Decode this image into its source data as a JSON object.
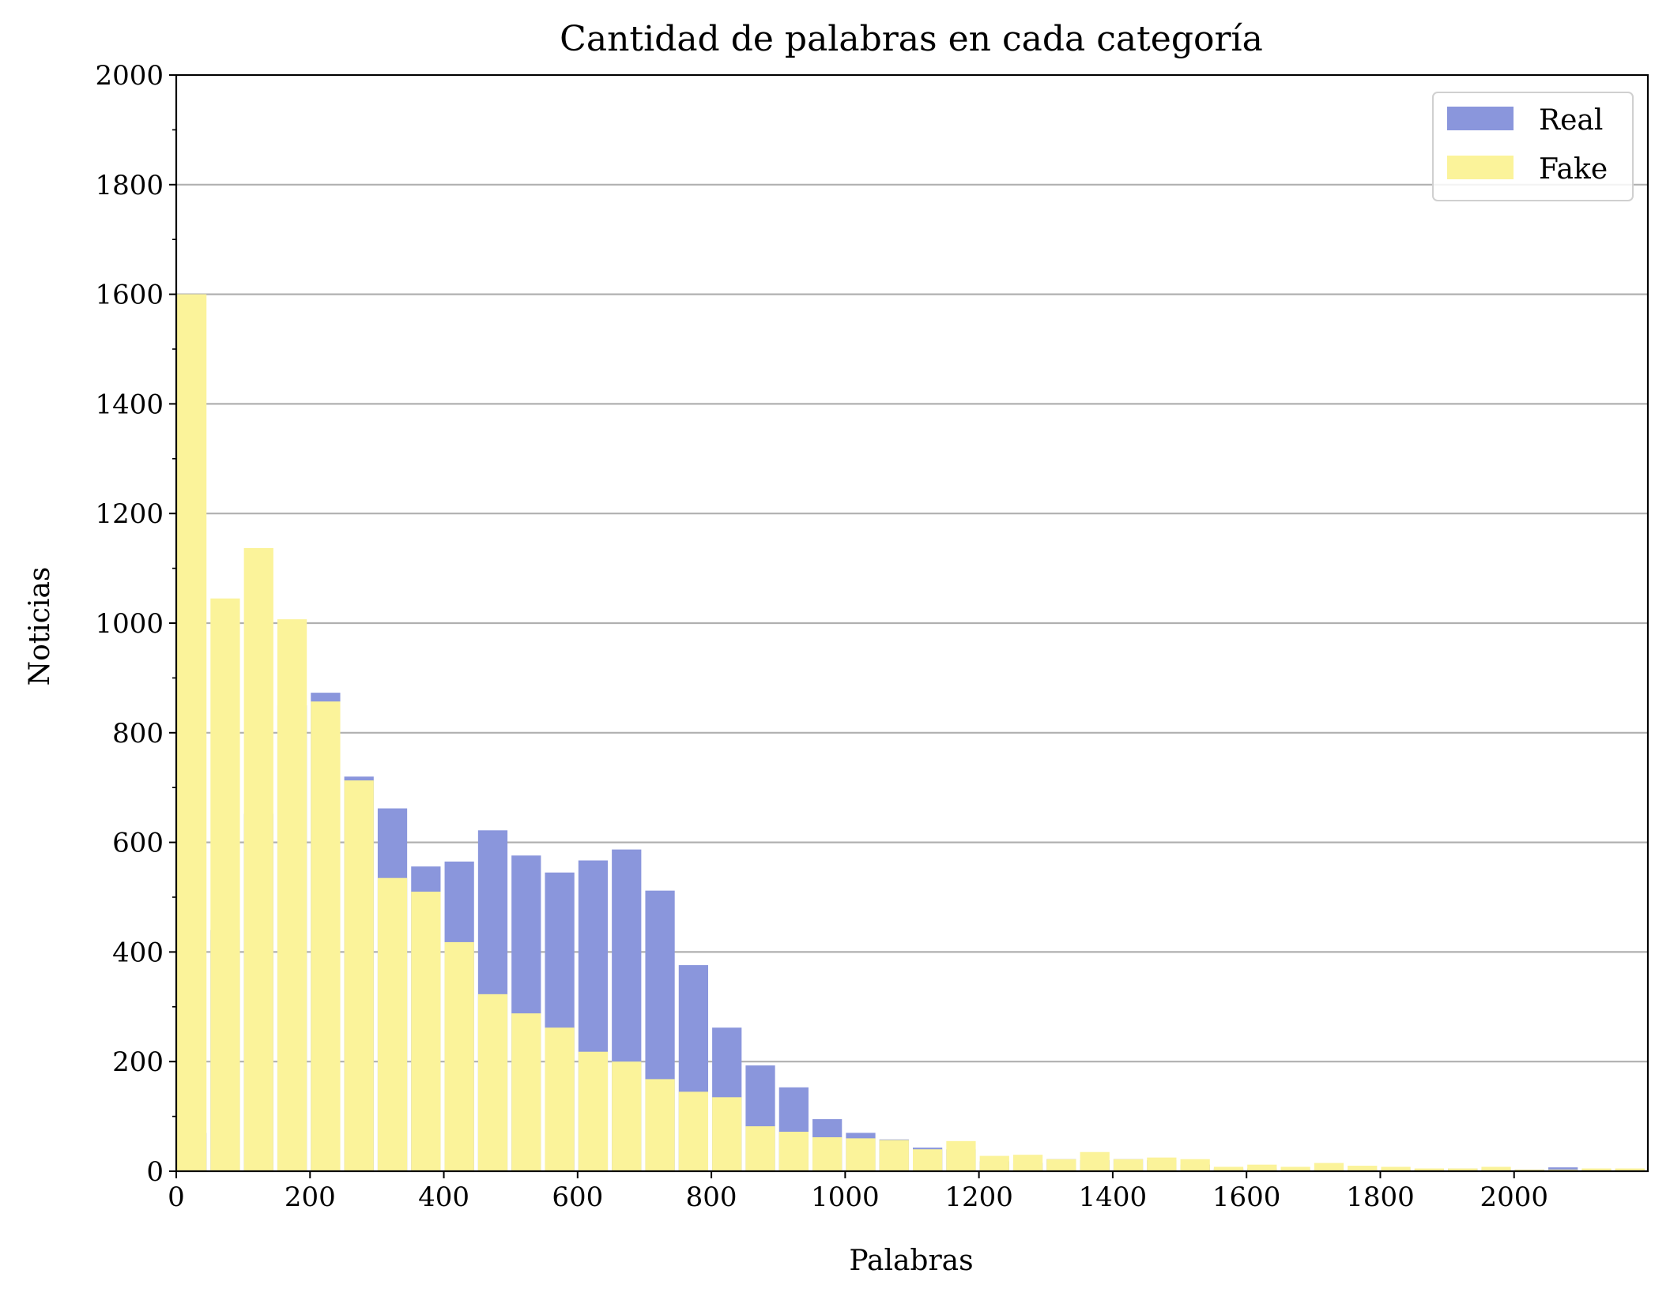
{
  "chart_data": {
    "type": "bar",
    "title": "Cantidad de palabras en cada categoría",
    "xlabel": "Palabras",
    "ylabel": "Noticias",
    "xlim": [
      0,
      2200
    ],
    "ylim": [
      0,
      2000
    ],
    "xticks": [
      0,
      200,
      400,
      600,
      800,
      1000,
      1200,
      1400,
      1600,
      1800,
      2000
    ],
    "yticks": [
      0,
      200,
      400,
      600,
      800,
      1000,
      1200,
      1400,
      1600,
      1800,
      2000
    ],
    "grid": "y",
    "legend_position": "top-right",
    "bin_width": 50,
    "bin_starts": [
      0,
      50,
      100,
      150,
      200,
      250,
      300,
      350,
      400,
      450,
      500,
      550,
      600,
      650,
      700,
      750,
      800,
      850,
      900,
      950,
      1000,
      1050,
      1100,
      1150,
      1200,
      1250,
      1300,
      1350,
      1400,
      1450,
      1500,
      1550,
      1600,
      1650,
      1700,
      1750,
      1800,
      1850,
      1900,
      1950,
      2000,
      2050,
      2100,
      2150
    ],
    "series": [
      {
        "name": "Real",
        "color": "#8a96dc",
        "values": [
          70,
          440,
          652,
          850,
          873,
          720,
          662,
          556,
          565,
          622,
          576,
          545,
          567,
          587,
          512,
          376,
          262,
          193,
          153,
          95,
          70,
          58,
          43,
          40,
          18,
          15,
          22,
          20,
          22,
          20,
          12,
          5,
          5,
          3,
          3,
          3,
          3,
          3,
          5,
          3,
          3,
          7,
          3,
          3
        ]
      },
      {
        "name": "Fake",
        "color": "#fbf39a",
        "values": [
          1600,
          1045,
          1137,
          1007,
          857,
          713,
          535,
          510,
          418,
          323,
          288,
          262,
          218,
          200,
          168,
          145,
          135,
          82,
          72,
          62,
          60,
          57,
          40,
          55,
          28,
          30,
          22,
          35,
          22,
          25,
          22,
          8,
          12,
          8,
          15,
          10,
          8,
          5,
          5,
          8,
          3,
          3,
          5,
          5
        ]
      }
    ]
  }
}
